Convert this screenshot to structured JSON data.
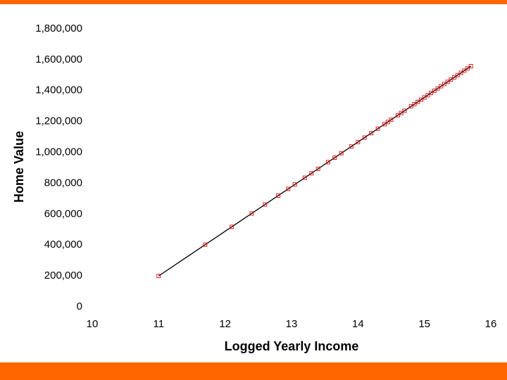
{
  "chart_data": {
    "type": "scatter",
    "xlabel": "Logged Yearly Income",
    "ylabel": "Home Value",
    "x": [
      11.0,
      11.7,
      12.1,
      12.4,
      12.6,
      12.8,
      12.95,
      13.05,
      13.2,
      13.3,
      13.4,
      13.55,
      13.65,
      13.75,
      13.9,
      14.0,
      14.1,
      14.2,
      14.3,
      14.4,
      14.45,
      14.5,
      14.6,
      14.65,
      14.7,
      14.8,
      14.85,
      14.9,
      14.95,
      15.0,
      15.05,
      15.1,
      15.15,
      15.2,
      15.25,
      15.3,
      15.35,
      15.4,
      15.45,
      15.5,
      15.55,
      15.6,
      15.65,
      15.7
    ],
    "series": [
      {
        "color": "#e02020",
        "values": [
          200000,
          402300,
          517900,
          604600,
          662400,
          720200,
          763600,
          792500,
          835800,
          864700,
          893600,
          937000,
          965900,
          994800,
          1038100,
          1067000,
          1095900,
          1124800,
          1153700,
          1182600,
          1196950,
          1211500,
          1240400,
          1254850,
          1269300,
          1298200,
          1312650,
          1327100,
          1341550,
          1356000,
          1370450,
          1384900,
          1399350,
          1413800,
          1428250,
          1442700,
          1457150,
          1471600,
          1486050,
          1500500,
          1514950,
          1529400,
          1543850,
          1558300
        ]
      }
    ],
    "trendline": {
      "color": "#000000",
      "x": [
        11.0,
        15.7
      ],
      "values": [
        200000,
        1558300
      ]
    },
    "xlim": [
      10,
      16
    ],
    "xticks": [
      10,
      11,
      12,
      13,
      14,
      15,
      16
    ],
    "ylim": [
      0,
      1800000
    ],
    "yticks": [
      0,
      {
        "value": 200000,
        "label": "200,000"
      },
      {
        "value": 400000,
        "label": "400,000"
      },
      {
        "value": 600000,
        "label": "600,000"
      },
      {
        "value": 800000,
        "label": "800,000"
      },
      {
        "value": 1000000,
        "label": "1,000,000"
      },
      {
        "value": 1200000,
        "label": "1,200,000"
      },
      {
        "value": 1400000,
        "label": "1,400,000"
      },
      {
        "value": 1600000,
        "label": "1,600,000"
      },
      {
        "value": 1800000,
        "label": "1,800,000"
      }
    ]
  }
}
